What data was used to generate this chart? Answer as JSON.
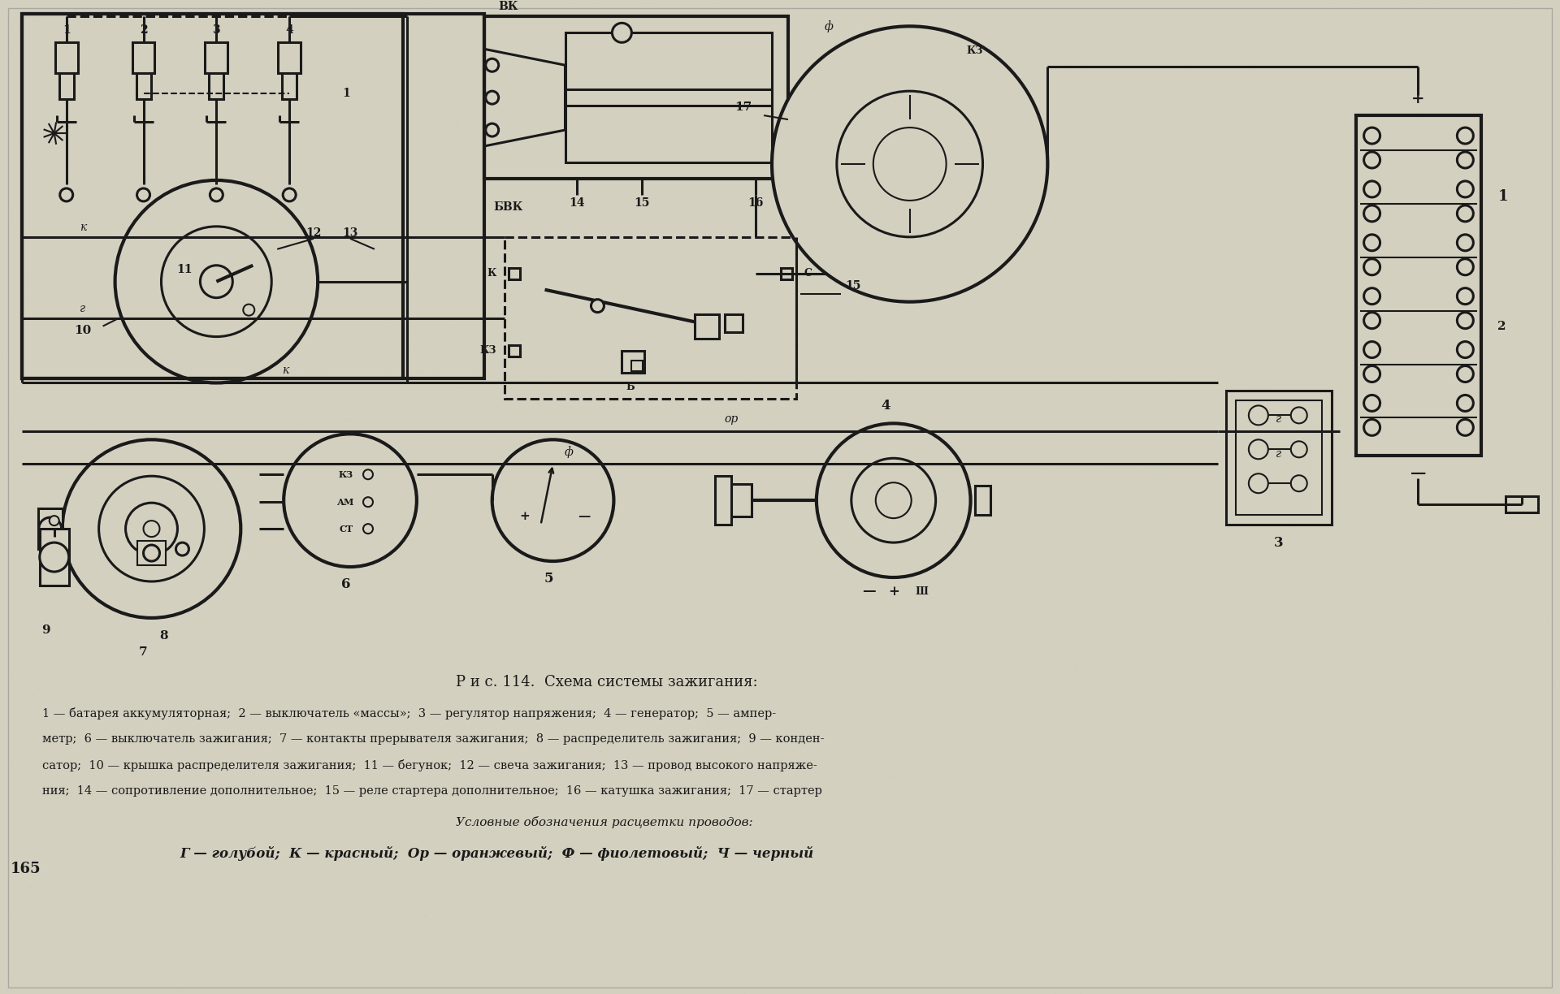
{
  "bg_color": "#ccc8b8",
  "paper_color": "#d4d0c0",
  "line_color": "#1a1a1a",
  "title": "Р и с. 114.  Схема системы зажигания:",
  "caption_line1": "1 — батарея аккумуляторная;  2 — выключатель «массы»;  3 — регулятор напряжения;  4 — генератор;  5 — ампер-",
  "caption_line2": "метр;  6 — выключатель зажигания;  7 — контакты прерывателя зажигания;  8 — распределитель зажигания;  9 — конден-",
  "caption_line3": "сатор;  10 — крышка распределителя зажигания;  11 — бегунок;  12 — свеча зажигания;  13 — провод высокого напряже-",
  "caption_line4": "ния;  14 — сопротивление дополнительное;  15 — реле стартера дополнительное;  16 — катушка зажигания;  17 — стартер",
  "legend_title": "Условные обозначения расцветки проводов:",
  "legend_line": "Г — голубой;  К — красный;  Ор — оранжевый;  Ф — фиолетовый;  Ч — черный",
  "page_number": "165"
}
